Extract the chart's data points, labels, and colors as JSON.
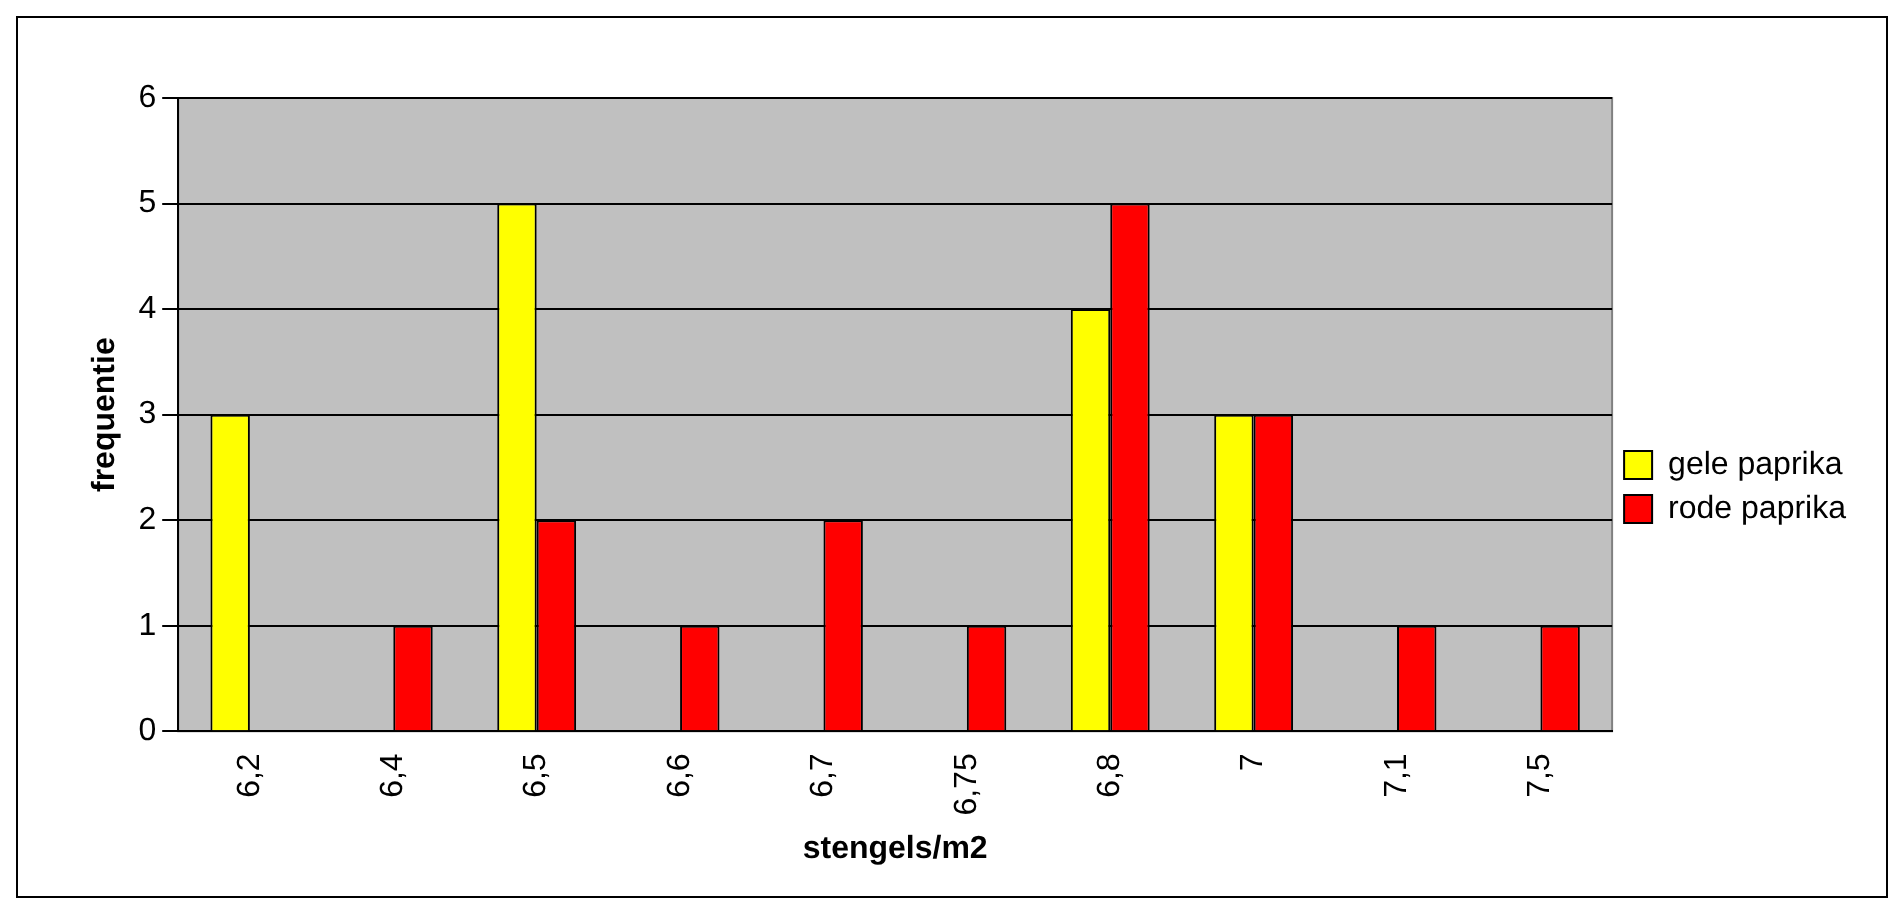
{
  "chart_data": {
    "type": "bar",
    "xlabel": "stengels/m2",
    "ylabel": "frequentie",
    "categories": [
      "6,2",
      "6,4",
      "6,5",
      "6,6",
      "6,7",
      "6,75",
      "6,8",
      "7",
      "7,1",
      "7,5"
    ],
    "series": [
      {
        "name": "gele paprika",
        "color": "#ffff00",
        "values": [
          3,
          0,
          5,
          0,
          0,
          0,
          4,
          3,
          0,
          0
        ]
      },
      {
        "name": "rode paprika",
        "color": "#ff0000",
        "values": [
          0,
          1,
          2,
          1,
          2,
          1,
          5,
          3,
          1,
          1
        ]
      }
    ],
    "ylim": [
      0,
      6
    ],
    "yticks": [
      0,
      1,
      2,
      3,
      4,
      5,
      6
    ],
    "grid": "y",
    "legend": "right"
  }
}
